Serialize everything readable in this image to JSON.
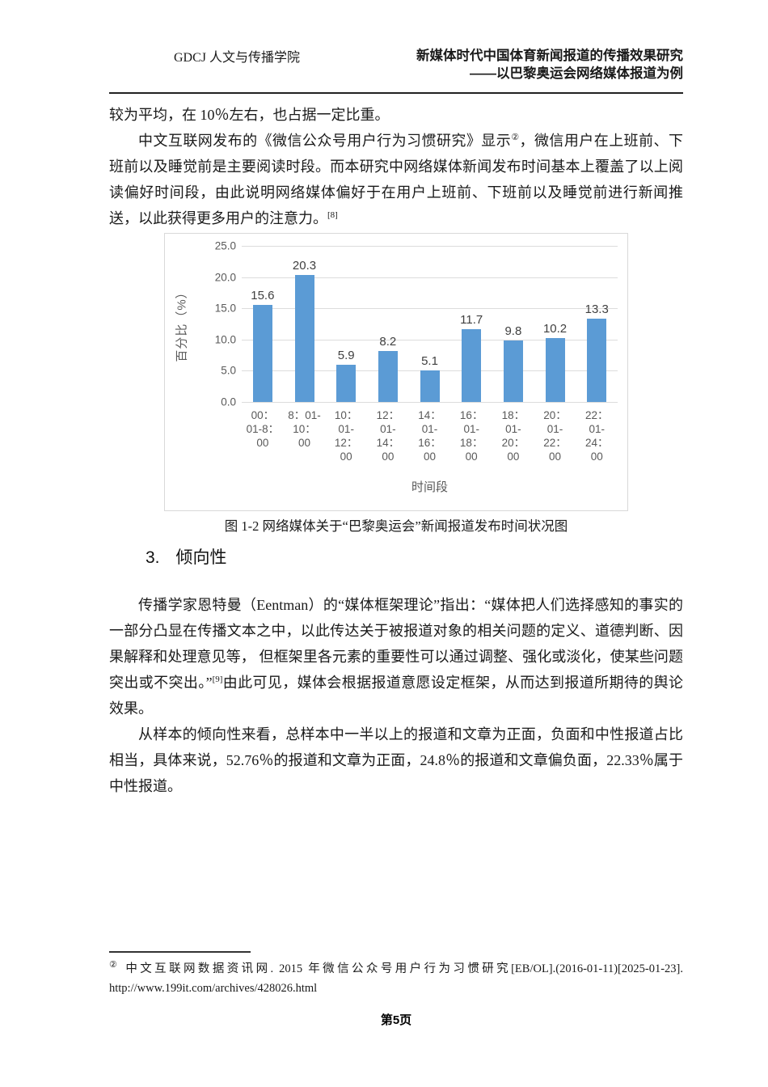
{
  "header": {
    "department": "GDCJ 人文与传播学院",
    "title_line1": "新媒体时代中国体育新闻报道的传播效果研究",
    "title_line2": "——以巴黎奥运会网络媒体报道为例"
  },
  "body": {
    "paragraphs_top": [
      {
        "indent": false,
        "segments": [
          {
            "text": "较为平均，在 10％左右，也占据一定比重。"
          }
        ]
      },
      {
        "indent": true,
        "segments": [
          {
            "text": "中文互联网发布的《微信公众号用户行为习惯研究》显示"
          },
          {
            "text": "②",
            "sup": true
          },
          {
            "text": "，微信用户在上班前、下班前以及睡觉前是主要阅读时段。而本研究中网络媒体新闻发布时间基本上覆盖了以上阅读偏好时间段，由此说明网络媒体偏好于在用户上班前、下班前以及睡觉前进行新闻推送，以此获得更多用户的注意力。"
          },
          {
            "text": "[8]",
            "sup": true
          }
        ]
      }
    ],
    "figure_caption": "图 1-2 网络媒体关于“巴黎奥运会”新闻报道发布时间状况图",
    "section_heading": {
      "number": "3.",
      "title": "倾向性"
    },
    "paragraphs_bottom": [
      {
        "indent": true,
        "segments": [
          {
            "text": "传播学家恩特曼（Eentman）的“媒体框架理论”指出：“媒体把人们选择感知的事实的一部分凸显在传播文本之中，以此传达关于被报道对象的相关问题的定义、道德判断、因果解释和处理意见等， 但框架里各元素的重要性可以通过调整、强化或淡化，使某些问题突出或不突出。”"
          },
          {
            "text": "[9]",
            "sup": true
          },
          {
            "text": "由此可见，媒体会根据报道意愿设定框架，从而达到报道所期待的舆论效果。"
          }
        ]
      },
      {
        "indent": true,
        "segments": [
          {
            "text": "从样本的倾向性来看，总样本中一半以上的报道和文章为正面，负面和中性报道占比相当，具体来说，52.76％的报道和文章为正面，24.8％的报道和文章偏负面，22.33％属于中性报道。"
          }
        ]
      }
    ]
  },
  "chart_data": {
    "type": "bar",
    "title": "",
    "categories": [
      "00：01-8：00",
      "8：01-10：00",
      "10：01-12：00",
      "12：01-14：00",
      "14：01-16：00",
      "16：01-18：00",
      "18：01-20：00",
      "20：01-22：00",
      "22：01-24：00"
    ],
    "category_display_lines": [
      [
        "00：",
        "01-8：",
        "00"
      ],
      [
        "8：01-",
        "10：",
        "00"
      ],
      [
        "10：",
        "01-",
        "12：",
        "00"
      ],
      [
        "12：",
        "01-",
        "14：",
        "00"
      ],
      [
        "14：",
        "01-",
        "16：",
        "00"
      ],
      [
        "16：",
        "01-",
        "18：",
        "00"
      ],
      [
        "18：",
        "01-",
        "20：",
        "00"
      ],
      [
        "20：",
        "01-",
        "22：",
        "00"
      ],
      [
        "22：",
        "01-",
        "24：",
        "00"
      ]
    ],
    "values": [
      15.6,
      20.3,
      5.9,
      8.2,
      5.1,
      11.7,
      9.8,
      10.2,
      13.3
    ],
    "value_labels": [
      "15.6",
      "20.3",
      "5.9",
      "8.2",
      "5.1",
      "11.7",
      "9.8",
      "10.2",
      "13.3"
    ],
    "xlabel": "时间段",
    "ylabel": "百分比（%）",
    "ylim": [
      0,
      25
    ],
    "yticks": [
      0,
      5,
      10,
      15,
      20,
      25
    ],
    "ytick_labels": [
      "0.0",
      "5.0",
      "10.0",
      "15.0",
      "20.0",
      "25.0"
    ],
    "grid": true,
    "legend": "none",
    "bar_color": "#5B9BD5",
    "colors": {
      "grid": "#DCDCDC",
      "frame": "#D9D9D9",
      "axis_text": "#595959",
      "value_label": "#404040"
    }
  },
  "footnote": {
    "segments": [
      {
        "text": "②",
        "sup": true
      },
      {
        "text": " 中文互联网数据资讯网. 2015 年微信公众号用户行为习惯研究[EB/OL].(2016-01-11)[2025-01-23]. http://www.199it.com/archives/428026.html"
      }
    ]
  },
  "footer": {
    "page_label": "第5页"
  }
}
